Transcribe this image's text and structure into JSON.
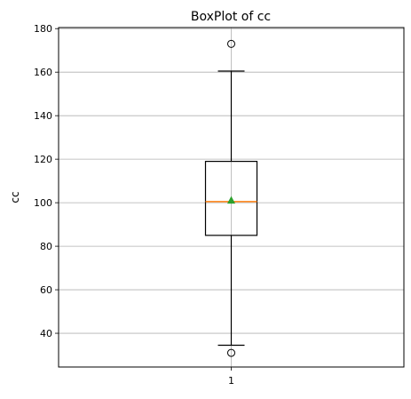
{
  "chart_data": {
    "type": "box",
    "title": "BoxPlot of cc",
    "xlabel": "",
    "ylabel": "cc",
    "categories": [
      "1"
    ],
    "ylim": [
      24.5,
      180.5
    ],
    "yticks": [
      40,
      60,
      80,
      100,
      120,
      140,
      160,
      180
    ],
    "grid": true,
    "boxes": [
      {
        "label": "1",
        "whisker_low": 34.5,
        "q1": 85,
        "median": 100.5,
        "mean": 101,
        "q3": 119,
        "whisker_high": 160.5,
        "outliers": [
          173,
          31
        ]
      }
    ],
    "colors": {
      "box": "#000000",
      "median": "#ff7f0e",
      "mean": "#2ca02c",
      "grid": "#b0b0b0"
    }
  }
}
